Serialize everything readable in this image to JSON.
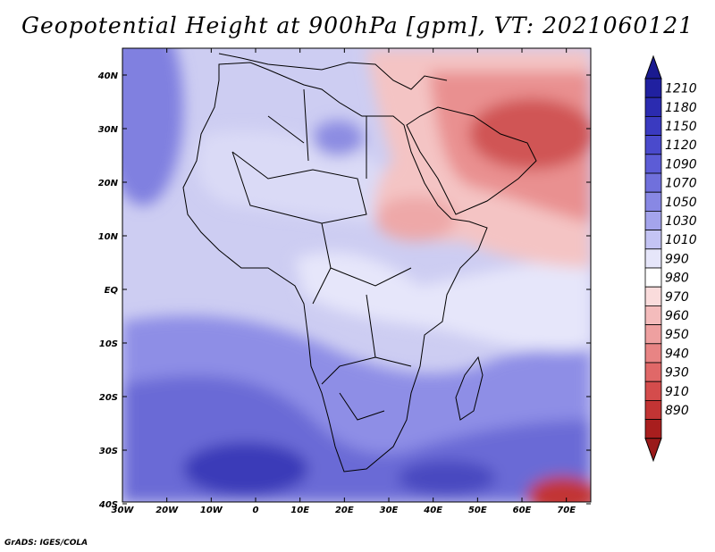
{
  "title": "Geopotential Height at 900hPa [gpm], VT: 2021060121",
  "credit": "GrADS: IGES/COLA",
  "lon_labels": [
    "30W",
    "20W",
    "10W",
    "0",
    "10E",
    "20E",
    "30E",
    "40E",
    "50E",
    "60E",
    "70E"
  ],
  "lat_labels": [
    "40N",
    "30N",
    "20N",
    "10N",
    "EQ",
    "10S",
    "20S",
    "30S",
    "40S"
  ],
  "colorbar": {
    "levels": [
      "1210",
      "1180",
      "1150",
      "1120",
      "1090",
      "1070",
      "1050",
      "1030",
      "1010",
      "990",
      "980",
      "970",
      "960",
      "950",
      "940",
      "930",
      "910",
      "890"
    ],
    "colors": [
      "#2020a0",
      "#2b2bb0",
      "#3a3ac0",
      "#4a4acc",
      "#5c5cd6",
      "#7070dc",
      "#8888e4",
      "#a4a4ec",
      "#c4c4f4",
      "#e6e6fa",
      "#ffffff",
      "#fadcdc",
      "#f4bcbc",
      "#eea0a0",
      "#e88484",
      "#e06868",
      "#d44c4c",
      "#c23434",
      "#a81e1e"
    ],
    "top_arrow_color": "#1a1a90",
    "bottom_arrow_color": "#9a1a1a"
  },
  "map_colors": {
    "ocean_base": "#cdcdf2",
    "deep_blue": "#3a3ab8",
    "mid_blue": "#7070d8",
    "light_blue": "#aaaaec",
    "pale": "#e8e8fa",
    "red_light": "#f2baba",
    "red_mid": "#e88080",
    "red_deep": "#cc4040"
  }
}
